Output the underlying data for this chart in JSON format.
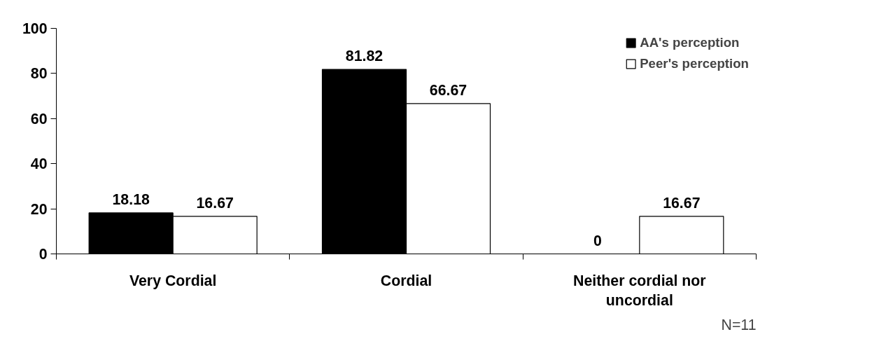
{
  "chart_data": {
    "type": "bar",
    "categories": [
      "Very Cordial",
      "Cordial",
      "Neither cordial nor uncordial"
    ],
    "series": [
      {
        "name": "AA's perception",
        "color": "#000000",
        "values": [
          18.18,
          81.82,
          0
        ]
      },
      {
        "name": "Peer's perception",
        "color": "#ffffff",
        "values": [
          16.67,
          66.67,
          16.67
        ]
      }
    ],
    "ylim": [
      0,
      100
    ],
    "yticks": [
      0,
      20,
      40,
      60,
      80,
      100
    ],
    "grid": false,
    "legend": "top right",
    "data_labels": true,
    "annotations": [
      "N=11"
    ]
  }
}
